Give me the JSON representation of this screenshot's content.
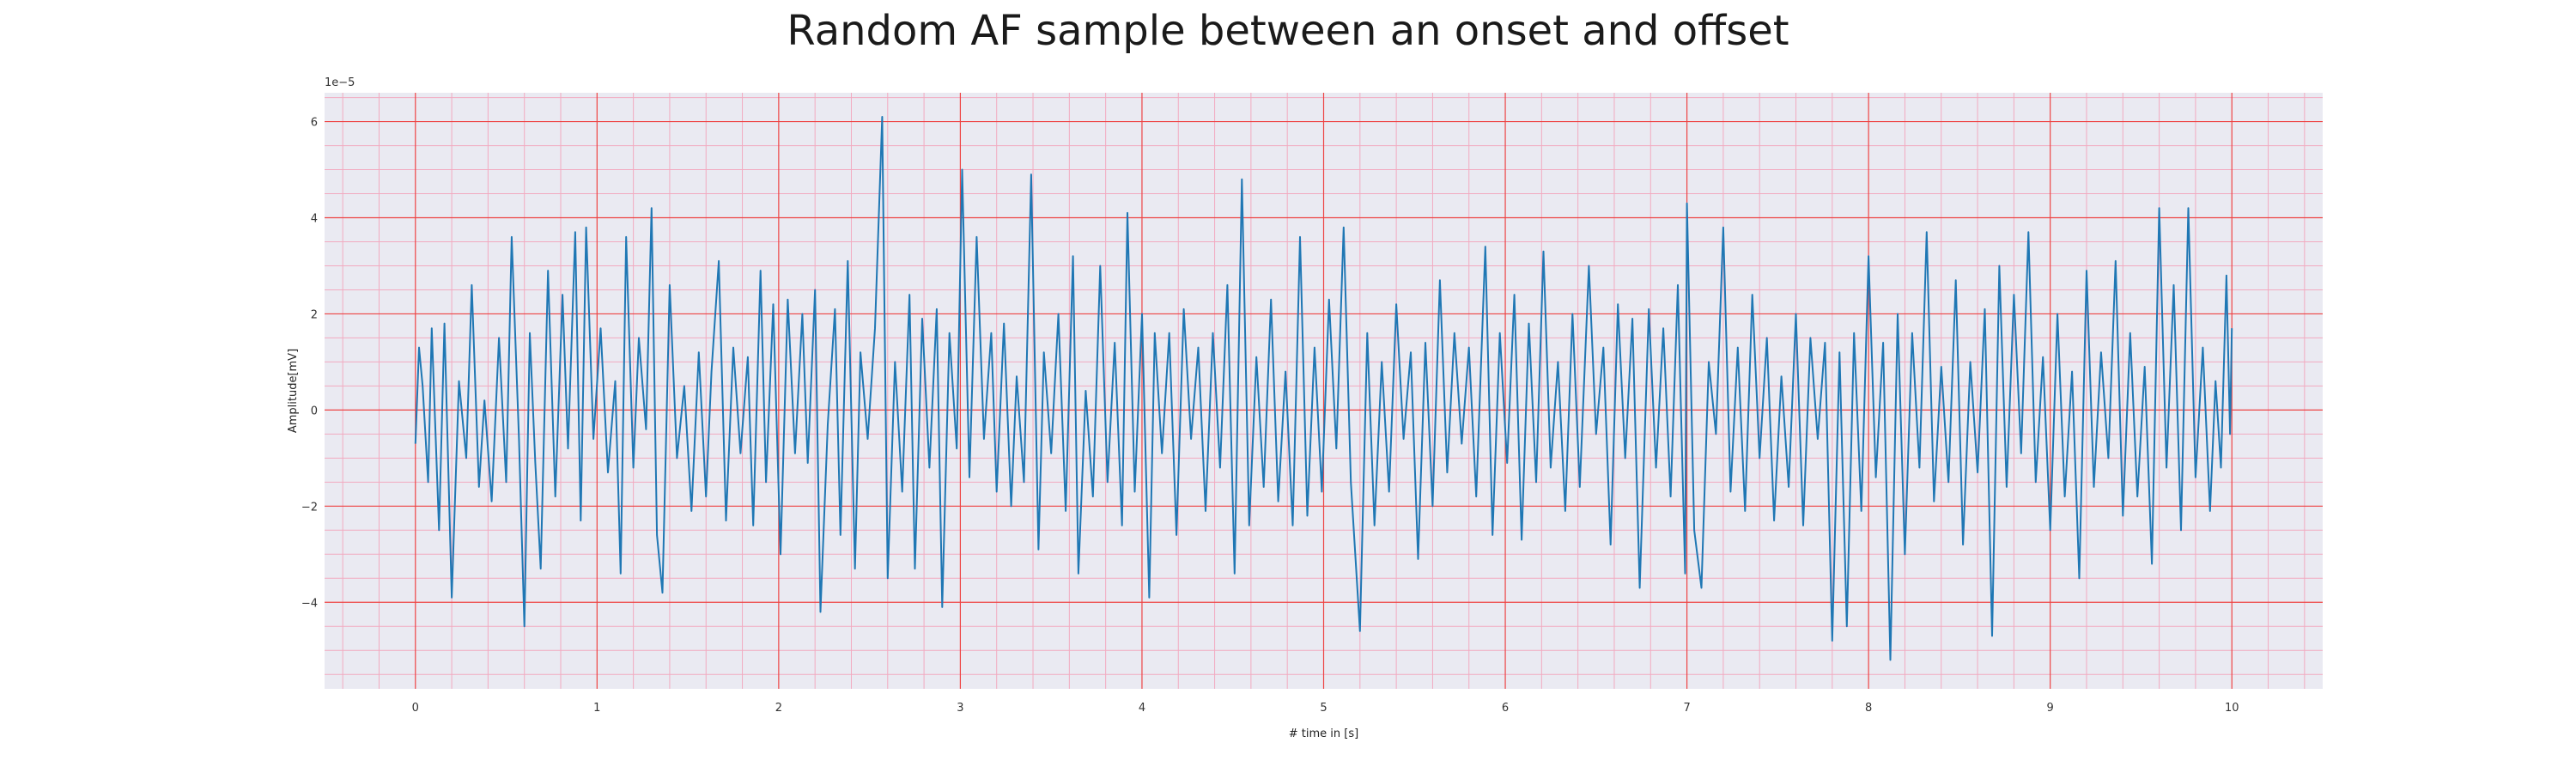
{
  "chart_data": {
    "type": "line",
    "title": "Random AF sample between an onset and offset",
    "xlabel": "# time in [s]",
    "ylabel": "Amplitude[mV]",
    "y_offset_label": "1e−5",
    "xlim": [
      -0.5,
      10.5
    ],
    "ylim": [
      -5.8,
      6.6
    ],
    "y_scale_factor": 1e-05,
    "x_ticks": [
      0,
      1,
      2,
      3,
      4,
      5,
      6,
      7,
      8,
      9,
      10
    ],
    "y_ticks": [
      -4,
      -2,
      0,
      2,
      4,
      6
    ],
    "grid": "on (red major, pink minor)",
    "colors": {
      "background": "#eaeaf2",
      "major_grid": "#ee4444",
      "minor_grid": "#f2aac0",
      "line": "#1f77b4"
    },
    "series": [
      {
        "values": [
          {
            "x": 0.0,
            "y": -0.7
          },
          {
            "x": 0.02,
            "y": 1.3
          },
          {
            "x": 0.04,
            "y": 0.5
          },
          {
            "x": 0.07,
            "y": -1.5
          },
          {
            "x": 0.09,
            "y": 1.7
          },
          {
            "x": 0.13,
            "y": -2.5
          },
          {
            "x": 0.16,
            "y": 1.8
          },
          {
            "x": 0.2,
            "y": -3.9
          },
          {
            "x": 0.24,
            "y": 0.6
          },
          {
            "x": 0.28,
            "y": -1.0
          },
          {
            "x": 0.31,
            "y": 2.6
          },
          {
            "x": 0.35,
            "y": -1.6
          },
          {
            "x": 0.38,
            "y": 0.2
          },
          {
            "x": 0.42,
            "y": -1.9
          },
          {
            "x": 0.46,
            "y": 1.5
          },
          {
            "x": 0.5,
            "y": -1.5
          },
          {
            "x": 0.53,
            "y": 3.6
          },
          {
            "x": 0.57,
            "y": -0.6
          },
          {
            "x": 0.6,
            "y": -4.5
          },
          {
            "x": 0.63,
            "y": 1.6
          },
          {
            "x": 0.66,
            "y": -1.1
          },
          {
            "x": 0.69,
            "y": -3.3
          },
          {
            "x": 0.73,
            "y": 2.9
          },
          {
            "x": 0.77,
            "y": -1.8
          },
          {
            "x": 0.81,
            "y": 2.4
          },
          {
            "x": 0.84,
            "y": -0.8
          },
          {
            "x": 0.88,
            "y": 3.7
          },
          {
            "x": 0.91,
            "y": -2.3
          },
          {
            "x": 0.94,
            "y": 3.8
          },
          {
            "x": 0.98,
            "y": -0.6
          },
          {
            "x": 1.02,
            "y": 1.7
          },
          {
            "x": 1.06,
            "y": -1.3
          },
          {
            "x": 1.1,
            "y": 0.6
          },
          {
            "x": 1.13,
            "y": -3.4
          },
          {
            "x": 1.16,
            "y": 3.6
          },
          {
            "x": 1.2,
            "y": -1.2
          },
          {
            "x": 1.23,
            "y": 1.5
          },
          {
            "x": 1.27,
            "y": -0.4
          },
          {
            "x": 1.3,
            "y": 4.2
          },
          {
            "x": 1.33,
            "y": -2.6
          },
          {
            "x": 1.36,
            "y": -3.8
          },
          {
            "x": 1.4,
            "y": 2.6
          },
          {
            "x": 1.44,
            "y": -1.0
          },
          {
            "x": 1.48,
            "y": 0.5
          },
          {
            "x": 1.52,
            "y": -2.1
          },
          {
            "x": 1.56,
            "y": 1.2
          },
          {
            "x": 1.6,
            "y": -1.8
          },
          {
            "x": 1.63,
            "y": 0.8
          },
          {
            "x": 1.67,
            "y": 3.1
          },
          {
            "x": 1.71,
            "y": -2.3
          },
          {
            "x": 1.75,
            "y": 1.3
          },
          {
            "x": 1.79,
            "y": -0.9
          },
          {
            "x": 1.83,
            "y": 1.1
          },
          {
            "x": 1.86,
            "y": -2.4
          },
          {
            "x": 1.9,
            "y": 2.9
          },
          {
            "x": 1.93,
            "y": -1.5
          },
          {
            "x": 1.97,
            "y": 2.2
          },
          {
            "x": 2.01,
            "y": -3.0
          },
          {
            "x": 2.05,
            "y": 2.3
          },
          {
            "x": 2.09,
            "y": -0.9
          },
          {
            "x": 2.13,
            "y": 2.0
          },
          {
            "x": 2.16,
            "y": -1.1
          },
          {
            "x": 2.2,
            "y": 2.5
          },
          {
            "x": 2.23,
            "y": -4.2
          },
          {
            "x": 2.27,
            "y": -0.3
          },
          {
            "x": 2.31,
            "y": 2.1
          },
          {
            "x": 2.34,
            "y": -2.6
          },
          {
            "x": 2.38,
            "y": 3.1
          },
          {
            "x": 2.42,
            "y": -3.3
          },
          {
            "x": 2.45,
            "y": 1.2
          },
          {
            "x": 2.49,
            "y": -0.6
          },
          {
            "x": 2.53,
            "y": 1.7
          },
          {
            "x": 2.57,
            "y": 6.1
          },
          {
            "x": 2.6,
            "y": -3.5
          },
          {
            "x": 2.64,
            "y": 1.0
          },
          {
            "x": 2.68,
            "y": -1.7
          },
          {
            "x": 2.72,
            "y": 2.4
          },
          {
            "x": 2.75,
            "y": -3.3
          },
          {
            "x": 2.79,
            "y": 1.9
          },
          {
            "x": 2.83,
            "y": -1.2
          },
          {
            "x": 2.87,
            "y": 2.1
          },
          {
            "x": 2.9,
            "y": -4.1
          },
          {
            "x": 2.94,
            "y": 1.6
          },
          {
            "x": 2.98,
            "y": -0.8
          },
          {
            "x": 3.01,
            "y": 5.0
          },
          {
            "x": 3.05,
            "y": -1.4
          },
          {
            "x": 3.09,
            "y": 3.6
          },
          {
            "x": 3.13,
            "y": -0.6
          },
          {
            "x": 3.17,
            "y": 1.6
          },
          {
            "x": 3.2,
            "y": -1.7
          },
          {
            "x": 3.24,
            "y": 1.8
          },
          {
            "x": 3.28,
            "y": -2.0
          },
          {
            "x": 3.31,
            "y": 0.7
          },
          {
            "x": 3.35,
            "y": -1.5
          },
          {
            "x": 3.39,
            "y": 4.9
          },
          {
            "x": 3.43,
            "y": -2.9
          },
          {
            "x": 3.46,
            "y": 1.2
          },
          {
            "x": 3.5,
            "y": -0.9
          },
          {
            "x": 3.54,
            "y": 2.0
          },
          {
            "x": 3.58,
            "y": -2.1
          },
          {
            "x": 3.62,
            "y": 3.2
          },
          {
            "x": 3.65,
            "y": -3.4
          },
          {
            "x": 3.69,
            "y": 0.4
          },
          {
            "x": 3.73,
            "y": -1.8
          },
          {
            "x": 3.77,
            "y": 3.0
          },
          {
            "x": 3.81,
            "y": -1.5
          },
          {
            "x": 3.85,
            "y": 1.4
          },
          {
            "x": 3.89,
            "y": -2.4
          },
          {
            "x": 3.92,
            "y": 4.1
          },
          {
            "x": 3.96,
            "y": -1.7
          },
          {
            "x": 4.0,
            "y": 2.0
          },
          {
            "x": 4.04,
            "y": -3.9
          },
          {
            "x": 4.07,
            "y": 1.6
          },
          {
            "x": 4.11,
            "y": -0.9
          },
          {
            "x": 4.15,
            "y": 1.6
          },
          {
            "x": 4.19,
            "y": -2.6
          },
          {
            "x": 4.23,
            "y": 2.1
          },
          {
            "x": 4.27,
            "y": -0.6
          },
          {
            "x": 4.31,
            "y": 1.3
          },
          {
            "x": 4.35,
            "y": -2.1
          },
          {
            "x": 4.39,
            "y": 1.6
          },
          {
            "x": 4.43,
            "y": -1.2
          },
          {
            "x": 4.47,
            "y": 2.6
          },
          {
            "x": 4.51,
            "y": -3.4
          },
          {
            "x": 4.55,
            "y": 4.8
          },
          {
            "x": 4.59,
            "y": -2.4
          },
          {
            "x": 4.63,
            "y": 1.1
          },
          {
            "x": 4.67,
            "y": -1.6
          },
          {
            "x": 4.71,
            "y": 2.3
          },
          {
            "x": 4.75,
            "y": -1.9
          },
          {
            "x": 4.79,
            "y": 0.8
          },
          {
            "x": 4.83,
            "y": -2.4
          },
          {
            "x": 4.87,
            "y": 3.6
          },
          {
            "x": 4.91,
            "y": -2.2
          },
          {
            "x": 4.95,
            "y": 1.3
          },
          {
            "x": 4.99,
            "y": -1.7
          },
          {
            "x": 5.03,
            "y": 2.3
          },
          {
            "x": 5.07,
            "y": -0.8
          },
          {
            "x": 5.11,
            "y": 3.8
          },
          {
            "x": 5.15,
            "y": -1.5
          },
          {
            "x": 5.2,
            "y": -4.6
          },
          {
            "x": 5.24,
            "y": 1.6
          },
          {
            "x": 5.28,
            "y": -2.4
          },
          {
            "x": 5.32,
            "y": 1.0
          },
          {
            "x": 5.36,
            "y": -1.7
          },
          {
            "x": 5.4,
            "y": 2.2
          },
          {
            "x": 5.44,
            "y": -0.6
          },
          {
            "x": 5.48,
            "y": 1.2
          },
          {
            "x": 5.52,
            "y": -3.1
          },
          {
            "x": 5.56,
            "y": 1.4
          },
          {
            "x": 5.6,
            "y": -2.0
          },
          {
            "x": 5.64,
            "y": 2.7
          },
          {
            "x": 5.68,
            "y": -1.3
          },
          {
            "x": 5.72,
            "y": 1.6
          },
          {
            "x": 5.76,
            "y": -0.7
          },
          {
            "x": 5.8,
            "y": 1.3
          },
          {
            "x": 5.84,
            "y": -1.8
          },
          {
            "x": 5.89,
            "y": 3.4
          },
          {
            "x": 5.93,
            "y": -2.6
          },
          {
            "x": 5.97,
            "y": 1.6
          },
          {
            "x": 6.01,
            "y": -1.1
          },
          {
            "x": 6.05,
            "y": 2.4
          },
          {
            "x": 6.09,
            "y": -2.7
          },
          {
            "x": 6.13,
            "y": 1.8
          },
          {
            "x": 6.17,
            "y": -1.5
          },
          {
            "x": 6.21,
            "y": 3.3
          },
          {
            "x": 6.25,
            "y": -1.2
          },
          {
            "x": 6.29,
            "y": 1.0
          },
          {
            "x": 6.33,
            "y": -2.1
          },
          {
            "x": 6.37,
            "y": 2.0
          },
          {
            "x": 6.41,
            "y": -1.6
          },
          {
            "x": 6.46,
            "y": 3.0
          },
          {
            "x": 6.5,
            "y": -0.5
          },
          {
            "x": 6.54,
            "y": 1.3
          },
          {
            "x": 6.58,
            "y": -2.8
          },
          {
            "x": 6.62,
            "y": 2.2
          },
          {
            "x": 6.66,
            "y": -1.0
          },
          {
            "x": 6.7,
            "y": 1.9
          },
          {
            "x": 6.74,
            "y": -3.7
          },
          {
            "x": 6.79,
            "y": 2.1
          },
          {
            "x": 6.83,
            "y": -1.2
          },
          {
            "x": 6.87,
            "y": 1.7
          },
          {
            "x": 6.91,
            "y": -1.8
          },
          {
            "x": 6.95,
            "y": 2.6
          },
          {
            "x": 6.99,
            "y": -3.4
          },
          {
            "x": 7.0,
            "y": 4.3
          },
          {
            "x": 7.04,
            "y": -2.5
          },
          {
            "x": 7.08,
            "y": -3.7
          },
          {
            "x": 7.12,
            "y": 1.0
          },
          {
            "x": 7.16,
            "y": -0.5
          },
          {
            "x": 7.2,
            "y": 3.8
          },
          {
            "x": 7.24,
            "y": -1.7
          },
          {
            "x": 7.28,
            "y": 1.3
          },
          {
            "x": 7.32,
            "y": -2.1
          },
          {
            "x": 7.36,
            "y": 2.4
          },
          {
            "x": 7.4,
            "y": -1.0
          },
          {
            "x": 7.44,
            "y": 1.5
          },
          {
            "x": 7.48,
            "y": -2.3
          },
          {
            "x": 7.52,
            "y": 0.7
          },
          {
            "x": 7.56,
            "y": -1.6
          },
          {
            "x": 7.6,
            "y": 2.0
          },
          {
            "x": 7.64,
            "y": -2.4
          },
          {
            "x": 7.68,
            "y": 1.5
          },
          {
            "x": 7.72,
            "y": -0.6
          },
          {
            "x": 7.76,
            "y": 1.4
          },
          {
            "x": 7.8,
            "y": -4.8
          },
          {
            "x": 7.84,
            "y": 1.2
          },
          {
            "x": 7.88,
            "y": -4.5
          },
          {
            "x": 7.92,
            "y": 1.6
          },
          {
            "x": 7.96,
            "y": -2.1
          },
          {
            "x": 8.0,
            "y": 3.2
          },
          {
            "x": 8.04,
            "y": -1.4
          },
          {
            "x": 8.08,
            "y": 1.4
          },
          {
            "x": 8.12,
            "y": -5.2
          },
          {
            "x": 8.16,
            "y": 2.0
          },
          {
            "x": 8.2,
            "y": -3.0
          },
          {
            "x": 8.24,
            "y": 1.6
          },
          {
            "x": 8.28,
            "y": -1.2
          },
          {
            "x": 8.32,
            "y": 3.7
          },
          {
            "x": 8.36,
            "y": -1.9
          },
          {
            "x": 8.4,
            "y": 0.9
          },
          {
            "x": 8.44,
            "y": -1.5
          },
          {
            "x": 8.48,
            "y": 2.7
          },
          {
            "x": 8.52,
            "y": -2.8
          },
          {
            "x": 8.56,
            "y": 1.0
          },
          {
            "x": 8.6,
            "y": -1.3
          },
          {
            "x": 8.64,
            "y": 2.1
          },
          {
            "x": 8.68,
            "y": -4.7
          },
          {
            "x": 8.72,
            "y": 3.0
          },
          {
            "x": 8.76,
            "y": -1.6
          },
          {
            "x": 8.8,
            "y": 2.4
          },
          {
            "x": 8.84,
            "y": -0.9
          },
          {
            "x": 8.88,
            "y": 3.7
          },
          {
            "x": 8.92,
            "y": -1.5
          },
          {
            "x": 8.96,
            "y": 1.1
          },
          {
            "x": 9.0,
            "y": -2.5
          },
          {
            "x": 9.04,
            "y": 2.0
          },
          {
            "x": 9.08,
            "y": -1.8
          },
          {
            "x": 9.12,
            "y": 0.8
          },
          {
            "x": 9.16,
            "y": -3.5
          },
          {
            "x": 9.2,
            "y": 2.9
          },
          {
            "x": 9.24,
            "y": -1.6
          },
          {
            "x": 9.28,
            "y": 1.2
          },
          {
            "x": 9.32,
            "y": -1.0
          },
          {
            "x": 9.36,
            "y": 3.1
          },
          {
            "x": 9.4,
            "y": -2.2
          },
          {
            "x": 9.44,
            "y": 1.6
          },
          {
            "x": 9.48,
            "y": -1.8
          },
          {
            "x": 9.52,
            "y": 0.9
          },
          {
            "x": 9.56,
            "y": -3.2
          },
          {
            "x": 9.6,
            "y": 4.2
          },
          {
            "x": 9.64,
            "y": -1.2
          },
          {
            "x": 9.68,
            "y": 2.6
          },
          {
            "x": 9.72,
            "y": -2.5
          },
          {
            "x": 9.76,
            "y": 4.2
          },
          {
            "x": 9.8,
            "y": -1.4
          },
          {
            "x": 9.84,
            "y": 1.3
          },
          {
            "x": 9.88,
            "y": -2.1
          },
          {
            "x": 9.91,
            "y": 0.6
          },
          {
            "x": 9.94,
            "y": -1.2
          },
          {
            "x": 9.97,
            "y": 2.8
          },
          {
            "x": 9.99,
            "y": -0.5
          },
          {
            "x": 10.0,
            "y": 1.7
          }
        ]
      }
    ]
  }
}
